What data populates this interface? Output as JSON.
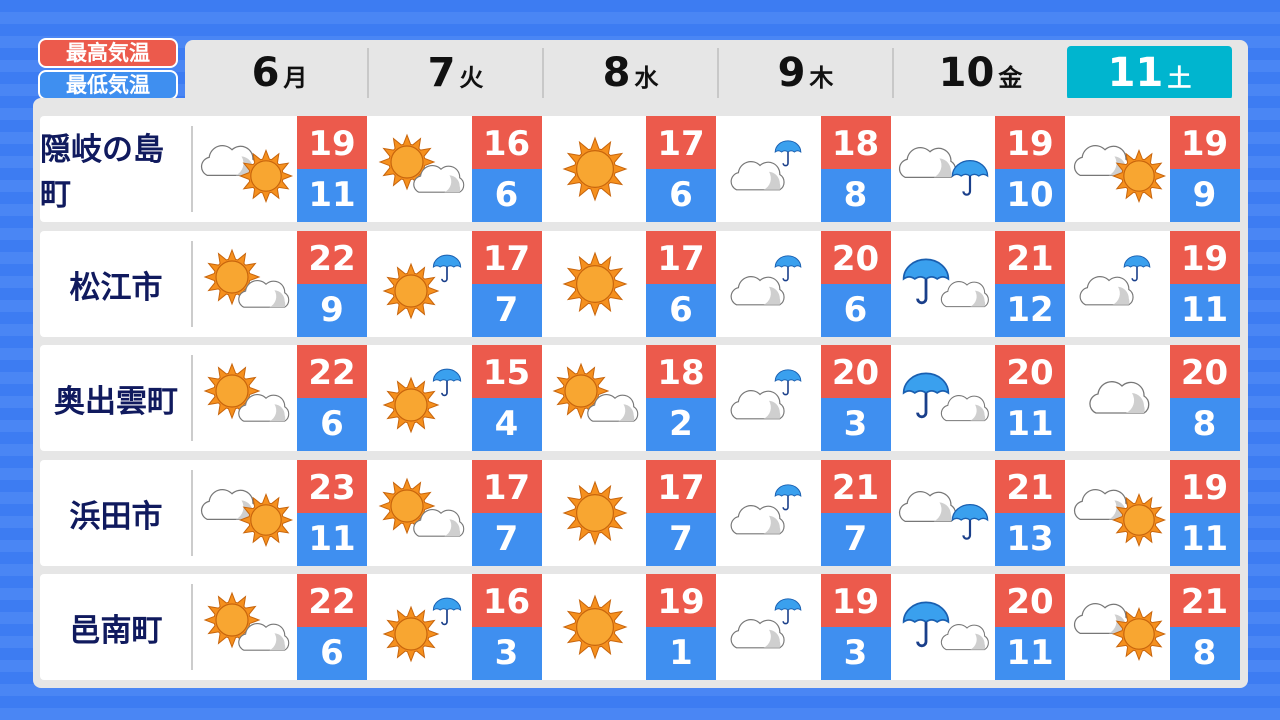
{
  "legend": {
    "high": "最高気温",
    "low": "最低気温"
  },
  "colors": {
    "high": "#ec5a4c",
    "low": "#3f8ff0",
    "today": "#00b5cf",
    "city_text": "#101a5e"
  },
  "days": [
    {
      "date": "6",
      "weekday": "月"
    },
    {
      "date": "7",
      "weekday": "火"
    },
    {
      "date": "8",
      "weekday": "水"
    },
    {
      "date": "9",
      "weekday": "木"
    },
    {
      "date": "10",
      "weekday": "金"
    },
    {
      "date": "11",
      "weekday": "土",
      "highlighted": true
    }
  ],
  "rows": [
    {
      "city": "隠岐の島町",
      "forecast": [
        {
          "icon": "cloud-sun",
          "high": "19",
          "low": "11"
        },
        {
          "icon": "sun-cloud",
          "high": "16",
          "low": "6"
        },
        {
          "icon": "sun",
          "high": "17",
          "low": "6"
        },
        {
          "icon": "cloud-rain",
          "high": "18",
          "low": "8"
        },
        {
          "icon": "cloud-then-rain",
          "high": "19",
          "low": "10"
        },
        {
          "icon": "cloud-sun",
          "high": "19",
          "low": "9"
        }
      ]
    },
    {
      "city": "松江市",
      "forecast": [
        {
          "icon": "sun-cloud",
          "high": "22",
          "low": "9"
        },
        {
          "icon": "sun-rain",
          "high": "17",
          "low": "7"
        },
        {
          "icon": "sun",
          "high": "17",
          "low": "6"
        },
        {
          "icon": "cloud-rain",
          "high": "20",
          "low": "6"
        },
        {
          "icon": "rain-cloud",
          "high": "21",
          "low": "12"
        },
        {
          "icon": "cloud-rain",
          "high": "19",
          "low": "11"
        }
      ]
    },
    {
      "city": "奥出雲町",
      "forecast": [
        {
          "icon": "sun-cloud",
          "high": "22",
          "low": "6"
        },
        {
          "icon": "sun-rain",
          "high": "15",
          "low": "4"
        },
        {
          "icon": "sun-cloud",
          "high": "18",
          "low": "2"
        },
        {
          "icon": "cloud-rain",
          "high": "20",
          "low": "3"
        },
        {
          "icon": "rain-cloud",
          "high": "20",
          "low": "11"
        },
        {
          "icon": "cloud",
          "high": "20",
          "low": "8"
        }
      ]
    },
    {
      "city": "浜田市",
      "forecast": [
        {
          "icon": "cloud-sun",
          "high": "23",
          "low": "11"
        },
        {
          "icon": "sun-cloud",
          "high": "17",
          "low": "7"
        },
        {
          "icon": "sun",
          "high": "17",
          "low": "7"
        },
        {
          "icon": "cloud-rain",
          "high": "21",
          "low": "7"
        },
        {
          "icon": "cloud-then-rain",
          "high": "21",
          "low": "13"
        },
        {
          "icon": "cloud-sun",
          "high": "19",
          "low": "11"
        }
      ]
    },
    {
      "city": "邑南町",
      "forecast": [
        {
          "icon": "sun-cloud",
          "high": "22",
          "low": "6"
        },
        {
          "icon": "sun-rain",
          "high": "16",
          "low": "3"
        },
        {
          "icon": "sun",
          "high": "19",
          "low": "1"
        },
        {
          "icon": "cloud-rain",
          "high": "19",
          "low": "3"
        },
        {
          "icon": "rain-cloud",
          "high": "20",
          "low": "11"
        },
        {
          "icon": "cloud-sun",
          "high": "21",
          "low": "8"
        }
      ]
    }
  ]
}
